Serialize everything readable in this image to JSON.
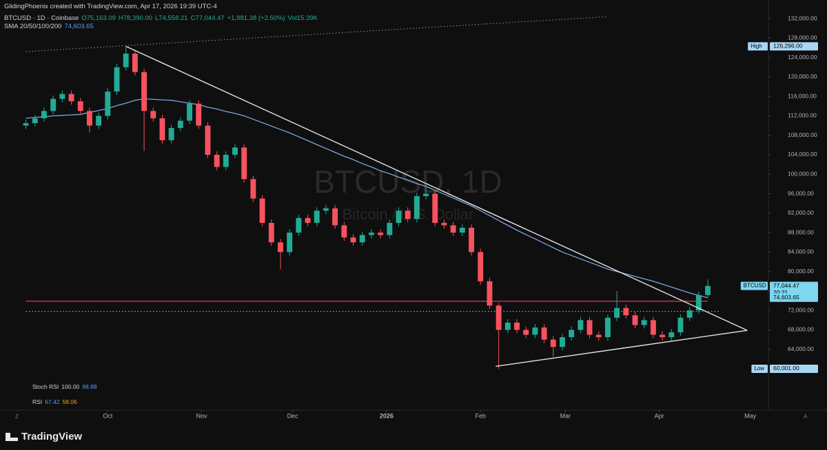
{
  "header": {
    "credit": "GlidingPhoenix created with TradingView.com, Apr 17, 2026 19:39 UTC-4",
    "symbol": "BTCUSD · 1D · Coinbase",
    "ohlc": [
      "O75,163.09",
      "H78,390.00",
      "L74,558.21",
      "C77,044.47",
      "+1,881.38 (+2.50%)"
    ],
    "volume": "Vol15.39K",
    "sma_name": "SMA 20/50/100/200",
    "sma_value": "74,603.65"
  },
  "indicators": [
    {
      "name": "Stoch RSI",
      "values": [
        "100.00",
        "98.88"
      ]
    },
    {
      "name": "RSI",
      "values": [
        "67.42",
        "58.06"
      ]
    }
  ],
  "footer": "TradingView",
  "axis_buttons": [
    "Z",
    "A"
  ],
  "chart_data": {
    "type": "candlestick",
    "watermark": "BTCUSD, 1D",
    "watermark_sub": "Bitcoin / U.S. Dollar",
    "x": [
      -27,
      -24,
      -21,
      -18,
      -15,
      -12,
      -9,
      -6,
      -3,
      0,
      3,
      6,
      9,
      12,
      15,
      18,
      21,
      24,
      27,
      30,
      33,
      36,
      39,
      42,
      45,
      48,
      51,
      54,
      57,
      60,
      63,
      66,
      69,
      72,
      75,
      78,
      81,
      84,
      87,
      90,
      93,
      96,
      99,
      102,
      105,
      108,
      111,
      114,
      117,
      120,
      123,
      126,
      129,
      132,
      135,
      138,
      141,
      144,
      147,
      150,
      153,
      156,
      159,
      162,
      165,
      168,
      171,
      174,
      177,
      180,
      183,
      186,
      189,
      192,
      195,
      198
    ],
    "open": [
      110000,
      110500,
      111500,
      113000,
      115500,
      116500,
      115000,
      113000,
      110000,
      112000,
      117000,
      122000,
      124800,
      121000,
      113000,
      111500,
      107000,
      109500,
      111000,
      114500,
      110000,
      104000,
      101500,
      104000,
      105500,
      99000,
      95000,
      90000,
      86000,
      84000,
      88000,
      91000,
      90000,
      92500,
      93000,
      89500,
      87000,
      86000,
      87500,
      88000,
      87500,
      90000,
      92500,
      90800,
      95500,
      96000,
      90000,
      89500,
      88000,
      89000,
      84000,
      78000,
      73000,
      68000,
      69500,
      68000,
      67000,
      68500,
      66000,
      64500,
      66500,
      68000,
      70000,
      67000,
      66500,
      70500,
      72500,
      71000,
      69000,
      70000,
      67000,
      66500,
      67500,
      70500,
      72000,
      75163.09
    ],
    "high": [
      111200,
      112200,
      113700,
      116200,
      117200,
      117200,
      115700,
      113700,
      112700,
      117700,
      122700,
      126296,
      125500,
      121700,
      113700,
      112200,
      110200,
      111700,
      115200,
      115200,
      110700,
      104700,
      104700,
      106200,
      106200,
      99700,
      95700,
      90700,
      86700,
      88700,
      91700,
      91700,
      93200,
      93700,
      93700,
      90200,
      87700,
      88200,
      88700,
      88700,
      90700,
      93200,
      93200,
      96200,
      97900,
      96700,
      90700,
      90200,
      89700,
      89700,
      84700,
      78700,
      73500,
      70200,
      70200,
      68700,
      69200,
      69200,
      66700,
      67200,
      68700,
      70700,
      70700,
      67700,
      71200,
      76000,
      73200,
      71700,
      70700,
      70700,
      67700,
      68200,
      71200,
      72700,
      75900,
      78390
    ],
    "low": [
      109300,
      109800,
      110800,
      112300,
      114800,
      114300,
      112300,
      108600,
      109300,
      111300,
      116300,
      121300,
      120300,
      104800,
      110800,
      106300,
      106300,
      108800,
      110300,
      109300,
      103300,
      100800,
      100800,
      103300,
      98300,
      94300,
      89300,
      85300,
      80500,
      83300,
      87300,
      89300,
      89300,
      91800,
      88800,
      86300,
      85300,
      85300,
      86800,
      86800,
      86800,
      89300,
      90100,
      90100,
      94800,
      89300,
      88800,
      87300,
      87300,
      83300,
      77300,
      72300,
      60001,
      67300,
      67300,
      66300,
      66300,
      65300,
      62500,
      63800,
      65800,
      67300,
      66300,
      65800,
      65800,
      69800,
      70300,
      68300,
      68300,
      66300,
      65800,
      65800,
      66800,
      69800,
      71300,
      74558.21
    ],
    "close": [
      110500,
      111500,
      113000,
      115500,
      116500,
      115000,
      113000,
      110000,
      112000,
      117000,
      122000,
      124800,
      121000,
      113000,
      111500,
      107000,
      109500,
      111000,
      114500,
      110000,
      104000,
      101500,
      104000,
      105500,
      99000,
      95000,
      90000,
      86000,
      84000,
      88000,
      91000,
      90000,
      92500,
      93000,
      89500,
      87000,
      86000,
      87500,
      88000,
      87500,
      90000,
      92500,
      90800,
      95500,
      96000,
      90000,
      89500,
      88000,
      89000,
      84000,
      78000,
      73000,
      68000,
      69500,
      68000,
      67000,
      68500,
      66000,
      64500,
      66500,
      68000,
      70000,
      67000,
      66500,
      70500,
      72500,
      71000,
      69000,
      70000,
      67000,
      66500,
      67500,
      70500,
      72000,
      75163.09,
      77044.47
    ],
    "up_color": "#22ab94",
    "down_color": "#f7525f",
    "sma": {
      "name": "SMA",
      "color": "#7ea6e0",
      "values": [
        111500,
        111700,
        111800,
        112000,
        112100,
        112200,
        112300,
        112700,
        113100,
        113500,
        114100,
        114600,
        115200,
        115500,
        115400,
        115300,
        115200,
        114900,
        114600,
        114300,
        113800,
        113400,
        112900,
        112500,
        112000,
        111300,
        110600,
        109900,
        109200,
        108500,
        107700,
        106900,
        106100,
        105300,
        104500,
        103700,
        103000,
        102200,
        101500,
        100700,
        100100,
        99400,
        98800,
        98100,
        97500,
        96700,
        95900,
        95100,
        94300,
        93500,
        92500,
        91500,
        90500,
        89500,
        88500,
        87600,
        86700,
        85800,
        84900,
        84000,
        83300,
        82600,
        81900,
        81200,
        80500,
        80000,
        79500,
        79000,
        78500,
        78000,
        77400,
        76800,
        76200,
        75600,
        75100,
        74603.65
      ]
    },
    "trendlines": [
      {
        "x": [
          6,
          211
        ],
        "y": [
          126296,
          67900
        ],
        "color": "#e6e6e6",
        "style": "solid"
      },
      {
        "x": [
          128,
          211
        ],
        "y": [
          60500,
          67900
        ],
        "color": "#e6e6e6",
        "style": "solid"
      },
      {
        "x": [
          -27,
          165
        ],
        "y": [
          125200,
          132400
        ],
        "color": "#9a9a9a",
        "style": "dotted"
      }
    ],
    "hlines": [
      {
        "y": 73900,
        "x": [
          -27,
          198
        ],
        "color": "#f23645",
        "style": "solid"
      },
      {
        "y": 71800,
        "x": [
          -27,
          202
        ],
        "color": "#b0b0b0",
        "style": "dotted"
      }
    ],
    "badges": [
      {
        "tag": "High",
        "value": 126296,
        "label": "126,296.00",
        "color": "#a9d6f5"
      },
      {
        "tag": "Low",
        "value": 60001,
        "label": "60,001.00",
        "color": "#a9d6f5"
      },
      {
        "tag": "BTCUSD",
        "value": 77044.47,
        "label": "77,044.47",
        "sub": "20:21",
        "color": "#7fd6f0"
      },
      {
        "value": 74603.65,
        "label": "74,603.65",
        "color": "#7fd6f0"
      }
    ],
    "xlim": [
      -31,
      218
    ],
    "xticks": [
      {
        "value": 0,
        "label": "Oct"
      },
      {
        "value": 31,
        "label": "Nov"
      },
      {
        "value": 61,
        "label": "Dec"
      },
      {
        "value": 92,
        "label": "2026"
      },
      {
        "value": 123,
        "label": "Feb"
      },
      {
        "value": 151,
        "label": "Mar"
      },
      {
        "value": 182,
        "label": "Apr"
      },
      {
        "value": 212,
        "label": "May"
      }
    ],
    "ylim": [
      60000,
      132000
    ],
    "yticks": [
      {
        "value": 64000,
        "label": "64,000.00"
      },
      {
        "value": 68000,
        "label": "68,000.00"
      },
      {
        "value": 72000,
        "label": "72,000.00"
      },
      {
        "value": 76000,
        "label": "76,000.00"
      },
      {
        "value": 80000,
        "label": "80,000.00"
      },
      {
        "value": 84000,
        "label": "84,000.00"
      },
      {
        "value": 88000,
        "label": "88,000.00"
      },
      {
        "value": 92000,
        "label": "92,000.00"
      },
      {
        "value": 96000,
        "label": "96,000.00"
      },
      {
        "value": 100000,
        "label": "100,000.00"
      },
      {
        "value": 104000,
        "label": "104,000.00"
      },
      {
        "value": 108000,
        "label": "108,000.00"
      },
      {
        "value": 112000,
        "label": "112,000.00"
      },
      {
        "value": 116000,
        "label": "116,000.00"
      },
      {
        "value": 120000,
        "label": "120,000.00"
      },
      {
        "value": 124000,
        "label": "124,000.00"
      },
      {
        "value": 128000,
        "label": "128,000.00"
      },
      {
        "value": 132000,
        "label": "132,000.00"
      }
    ],
    "grid": false
  }
}
